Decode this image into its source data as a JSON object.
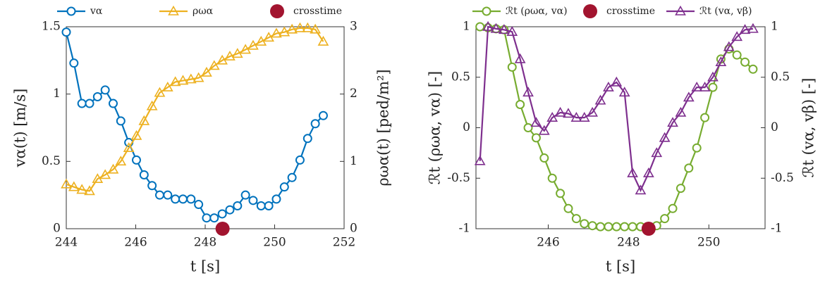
{
  "chart_data": [
    {
      "type": "line",
      "x": [
        244.0,
        244.22,
        244.45,
        244.67,
        244.9,
        245.12,
        245.35,
        245.57,
        245.8,
        246.02,
        246.24,
        246.47,
        246.69,
        246.92,
        247.14,
        247.36,
        247.59,
        247.81,
        248.04,
        248.26,
        248.49,
        248.71,
        248.93,
        249.16,
        249.38,
        249.61,
        249.83,
        250.05,
        250.28,
        250.5,
        250.73,
        250.95,
        251.17,
        251.4
      ],
      "series": [
        {
          "name": "vα",
          "color": "#0072bd",
          "marker": "circle",
          "axis": "y",
          "values": [
            1.46,
            1.23,
            0.93,
            0.93,
            0.98,
            1.03,
            0.93,
            0.8,
            0.64,
            0.51,
            0.4,
            0.32,
            0.25,
            0.25,
            0.22,
            0.22,
            0.22,
            0.18,
            0.08,
            0.08,
            0.11,
            0.14,
            0.17,
            0.25,
            0.21,
            0.17,
            0.17,
            0.22,
            0.31,
            0.38,
            0.51,
            0.67,
            0.78,
            0.84
          ]
        },
        {
          "name": "ρωα",
          "color": "#edb120",
          "marker": "triangle",
          "axis": "y2",
          "values": [
            0.66,
            0.62,
            0.58,
            0.56,
            0.74,
            0.8,
            0.88,
            1.0,
            1.2,
            1.38,
            1.6,
            1.82,
            2.02,
            2.1,
            2.18,
            2.2,
            2.22,
            2.24,
            2.32,
            2.42,
            2.5,
            2.56,
            2.6,
            2.66,
            2.72,
            2.78,
            2.84,
            2.9,
            2.92,
            2.96,
            2.98,
            2.98,
            2.96,
            2.78
          ]
        },
        {
          "name": "crosstime",
          "color": "#a2142f",
          "marker": "dot",
          "axis": "y",
          "x": [
            248.5
          ],
          "values": [
            0
          ]
        }
      ],
      "xlabel": "t [s]",
      "ylabel": "vα(t) [m/s]",
      "y2label": "ρωα(t) [ped/m²]",
      "xlim": [
        244,
        252
      ],
      "xticks": [
        244,
        246,
        248,
        250,
        252
      ],
      "ylim": [
        0,
        1.5
      ],
      "yticks": [
        0,
        0.5,
        1,
        1.5
      ],
      "y2lim": [
        0,
        3
      ],
      "y2ticks": [
        0,
        1,
        2,
        3
      ]
    },
    {
      "type": "line",
      "x": [
        244.3,
        244.5,
        244.7,
        244.9,
        245.1,
        245.3,
        245.5,
        245.7,
        245.9,
        246.1,
        246.3,
        246.5,
        246.7,
        246.9,
        247.1,
        247.3,
        247.5,
        247.7,
        247.9,
        248.1,
        248.3,
        248.5,
        248.7,
        248.9,
        249.1,
        249.3,
        249.5,
        249.7,
        249.9,
        250.1,
        250.3,
        250.5,
        250.7,
        250.9,
        251.1
      ],
      "series": [
        {
          "name": "ℛt (ρωα, vα)",
          "color": "#77ac30",
          "marker": "circle",
          "axis": "y",
          "values": [
            1.0,
            0.99,
            0.98,
            0.97,
            0.6,
            0.23,
            0.0,
            -0.1,
            -0.3,
            -0.5,
            -0.65,
            -0.8,
            -0.9,
            -0.95,
            -0.97,
            -0.98,
            -0.98,
            -0.98,
            -0.98,
            -0.98,
            -0.98,
            -0.98,
            -0.97,
            -0.9,
            -0.8,
            -0.6,
            -0.4,
            -0.2,
            0.1,
            0.4,
            0.68,
            0.78,
            0.72,
            0.65,
            0.58
          ]
        },
        {
          "name": "crosstime",
          "color": "#a2142f",
          "marker": "dot",
          "axis": "y",
          "x": [
            248.5
          ],
          "values": [
            -1
          ]
        },
        {
          "name": "ℛt (vα, vβ)",
          "color": "#7e2f8e",
          "marker": "triangle",
          "axis": "y2",
          "values": [
            -0.33,
            1.0,
            0.98,
            0.97,
            0.95,
            0.68,
            0.35,
            0.05,
            -0.03,
            0.1,
            0.15,
            0.14,
            0.1,
            0.1,
            0.15,
            0.27,
            0.4,
            0.45,
            0.35,
            -0.45,
            -0.62,
            -0.45,
            -0.25,
            -0.1,
            0.05,
            0.15,
            0.3,
            0.4,
            0.4,
            0.5,
            0.65,
            0.8,
            0.9,
            0.97,
            0.98
          ]
        }
      ],
      "xlabel": "t [s]",
      "ylabel": "ℛt (ρωα, vα) [-]",
      "y2label": "ℛt (vα, vβ) [-]",
      "xlim": [
        244.2,
        251.4
      ],
      "xticks": [
        246,
        248,
        250
      ],
      "ylim": [
        -1,
        1
      ],
      "yticks": [
        -1,
        -0.5,
        0,
        0.5,
        1
      ],
      "y2lim": [
        -1,
        1
      ],
      "y2ticks": [
        -1,
        -0.5,
        0,
        0.5,
        1
      ]
    }
  ]
}
